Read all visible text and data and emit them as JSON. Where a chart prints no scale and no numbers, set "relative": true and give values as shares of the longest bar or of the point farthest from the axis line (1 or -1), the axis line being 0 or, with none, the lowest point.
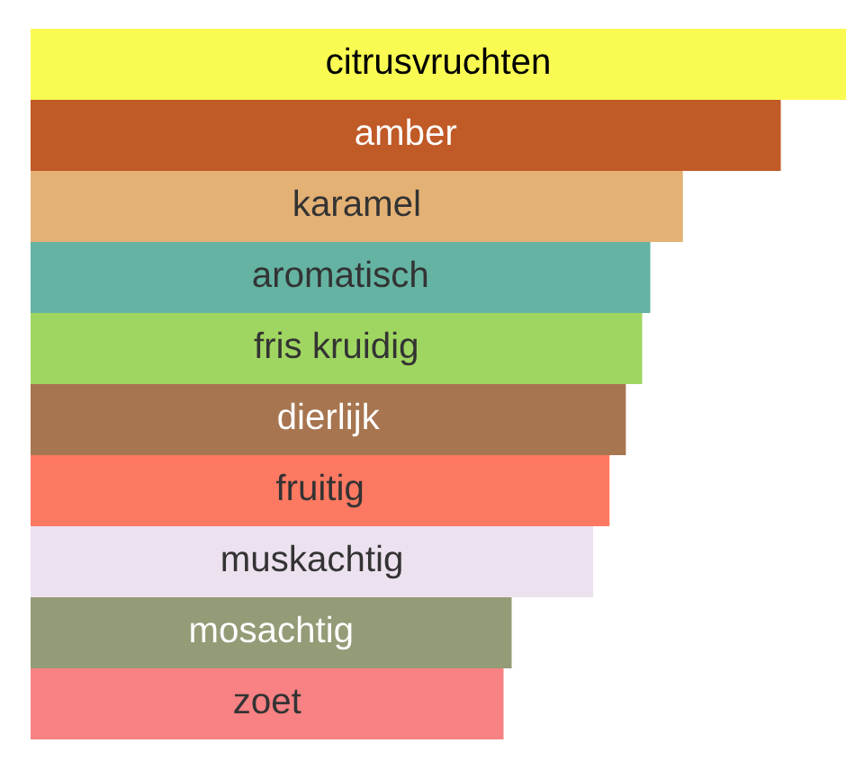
{
  "chart_data": {
    "type": "bar",
    "orientation": "horizontal",
    "relative": true,
    "categories": [
      "citrusvruchten",
      "amber",
      "karamel",
      "aromatisch",
      "fris kruidig",
      "dierlijk",
      "fruitig",
      "muskachtig",
      "mosachtig",
      "zoet"
    ],
    "values": [
      1,
      0.92,
      0.8,
      0.76,
      0.75,
      0.73,
      0.71,
      0.69,
      0.59,
      0.58
    ],
    "colors": [
      "#f9fb52",
      "#c05a27",
      "#e4b175",
      "#64b3a3",
      "#9fd661",
      "#a77550",
      "#fe7961",
      "#ece1ef",
      "#949c77",
      "#f78183"
    ]
  }
}
